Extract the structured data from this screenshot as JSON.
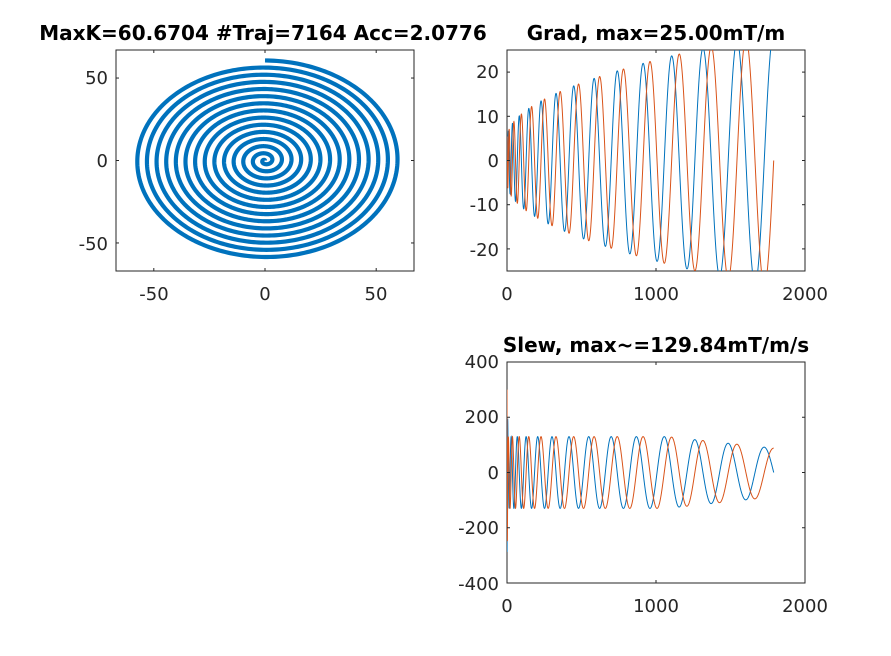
{
  "colors": {
    "series1": "#0072BD",
    "series2": "#D95319",
    "axes": "#262626",
    "background": "#ffffff"
  },
  "chart_data": [
    {
      "type": "line",
      "subtype": "spiral-trajectory",
      "title": "MaxK=60.6704 #Traj=7164 Acc=2.0776",
      "xlim": [
        -67,
        67
      ],
      "ylim": [
        -67,
        67
      ],
      "x_ticks": [
        -50,
        0,
        50
      ],
      "x_tick_labels": [
        "-50",
        "0",
        "50"
      ],
      "y_ticks": [
        -50,
        0,
        50
      ],
      "y_tick_labels": [
        "-50",
        "0",
        "50"
      ],
      "grid": false,
      "series": [
        {
          "color": "#0072BD",
          "turns": 14,
          "k_max": 60.6704,
          "k_start": 0
        }
      ]
    },
    {
      "type": "line",
      "title": "Grad, max=25.00mT/m",
      "xlim": [
        0,
        2000
      ],
      "ylim": [
        -25,
        25
      ],
      "x_ticks": [
        0,
        1000,
        2000
      ],
      "x_tick_labels": [
        "0",
        "1000",
        "2000"
      ],
      "y_ticks": [
        -20,
        -10,
        0,
        10,
        20
      ],
      "y_tick_labels": [
        "-20",
        "-10",
        "0",
        "10",
        "20"
      ],
      "grid": false,
      "x_end": 1790,
      "turns": 14,
      "amplitude_start": 5,
      "amplitude_max": 25,
      "series": [
        {
          "color": "#0072BD",
          "component": "x"
        },
        {
          "color": "#D95319",
          "component": "y"
        }
      ]
    },
    {
      "type": "line",
      "title": "Slew, max~=129.84mT/m/s",
      "xlim": [
        0,
        2000
      ],
      "ylim": [
        -400,
        400
      ],
      "x_ticks": [
        0,
        1000,
        2000
      ],
      "x_tick_labels": [
        "0",
        "1000",
        "2000"
      ],
      "y_ticks": [
        -400,
        -200,
        0,
        200,
        400
      ],
      "y_tick_labels": [
        "-400",
        "-200",
        "0",
        "200",
        "400"
      ],
      "grid": false,
      "x_end": 1790,
      "turns": 14,
      "amplitude": 129.84,
      "amplitude_end": 88,
      "spike_start": 300,
      "series": [
        {
          "color": "#0072BD",
          "component": "x"
        },
        {
          "color": "#D95319",
          "component": "y"
        }
      ]
    }
  ]
}
